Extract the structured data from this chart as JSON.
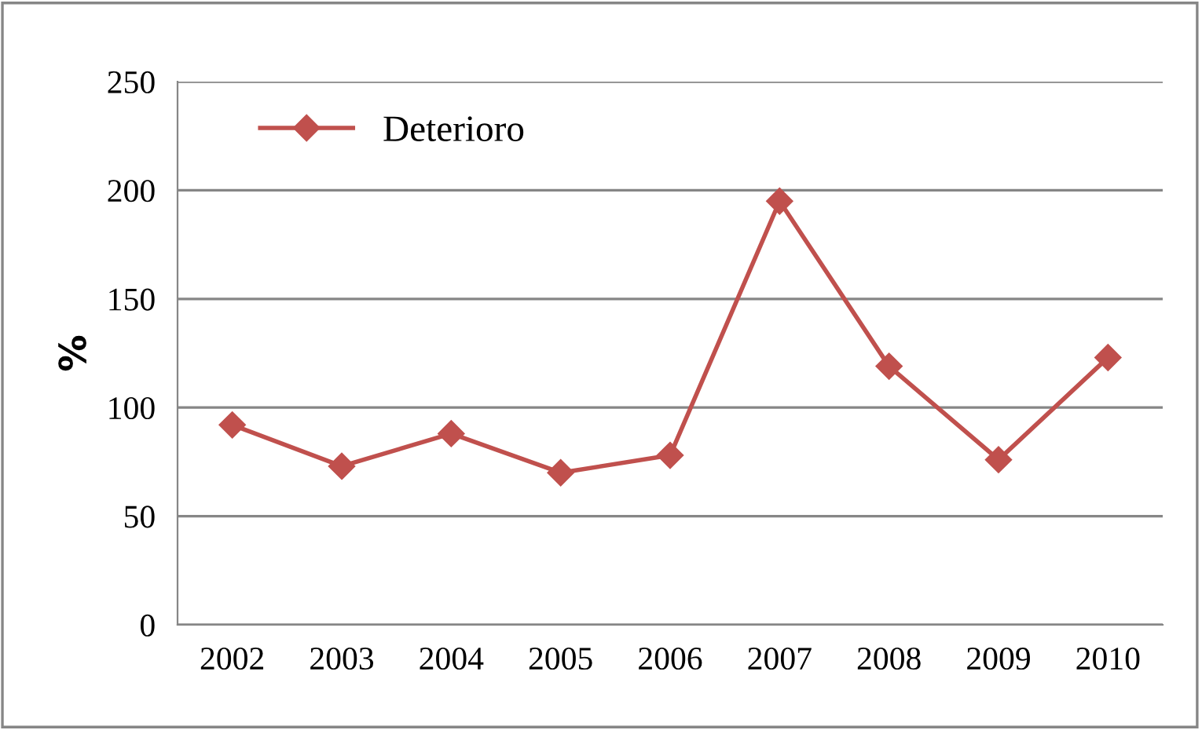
{
  "chart_data": {
    "type": "line",
    "ylabel": "%",
    "categories": [
      "2002",
      "2003",
      "2004",
      "2005",
      "2006",
      "2007",
      "2008",
      "2009",
      "2010"
    ],
    "series": [
      {
        "name": "Deterioro",
        "color": "#c0504d",
        "values": [
          92,
          73,
          88,
          70,
          78,
          195,
          119,
          76,
          123
        ]
      }
    ],
    "ylim": [
      0,
      250
    ],
    "yticks": [
      0,
      50,
      100,
      150,
      200,
      250
    ],
    "grid": "y",
    "legend": "top left",
    "marker": "diamond",
    "line_style": "solid"
  }
}
